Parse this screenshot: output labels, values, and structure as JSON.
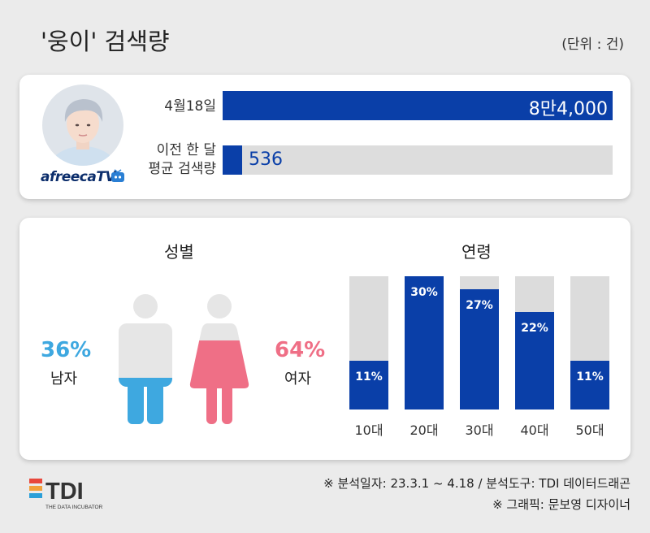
{
  "header": {
    "title": "'웅이' 검색량",
    "unit": "(단위 : 건)"
  },
  "search_card": {
    "brand": "afreecaTV",
    "rows": [
      {
        "label_lines": [
          "4월18일"
        ],
        "value_text": "8만4,000"
      },
      {
        "label_lines": [
          "이전 한 달",
          "평균 검색량"
        ],
        "value_text": "536"
      }
    ]
  },
  "gender": {
    "title": "성별",
    "male": {
      "pct": "36%",
      "label": "남자"
    },
    "female": {
      "pct": "64%",
      "label": "여자"
    }
  },
  "age": {
    "title": "연령"
  },
  "chart_data": [
    {
      "type": "bar",
      "categories": [
        "4월18일",
        "이전 한 달 평균 검색량"
      ],
      "values": [
        84000,
        536
      ]
    },
    {
      "type": "bar",
      "categories": [
        "남자",
        "여자"
      ],
      "values": [
        36,
        64
      ]
    },
    {
      "type": "bar",
      "categories": [
        "10대",
        "20대",
        "30대",
        "40대",
        "50대"
      ],
      "values": [
        11,
        30,
        27,
        22,
        11
      ],
      "value_labels": [
        "11%",
        "30%",
        "27%",
        "22%",
        "11%"
      ],
      "ylim": [
        0,
        30
      ]
    }
  ],
  "footer": {
    "line1": "※ 분석일자: 23.3.1 ~ 4.18  / 분석도구: TDI 데이터드래곤",
    "line2": "※ 그래픽: 문보영 디자이너",
    "logo_text": "TDI",
    "logo_sub": "THE DATA INCUBATOR"
  },
  "colors": {
    "bar": "#0a3fa8",
    "bar_bg": "#dddddd",
    "male": "#3ea8e0",
    "female": "#ef6f86",
    "silhouette": "#e6e6e6"
  }
}
